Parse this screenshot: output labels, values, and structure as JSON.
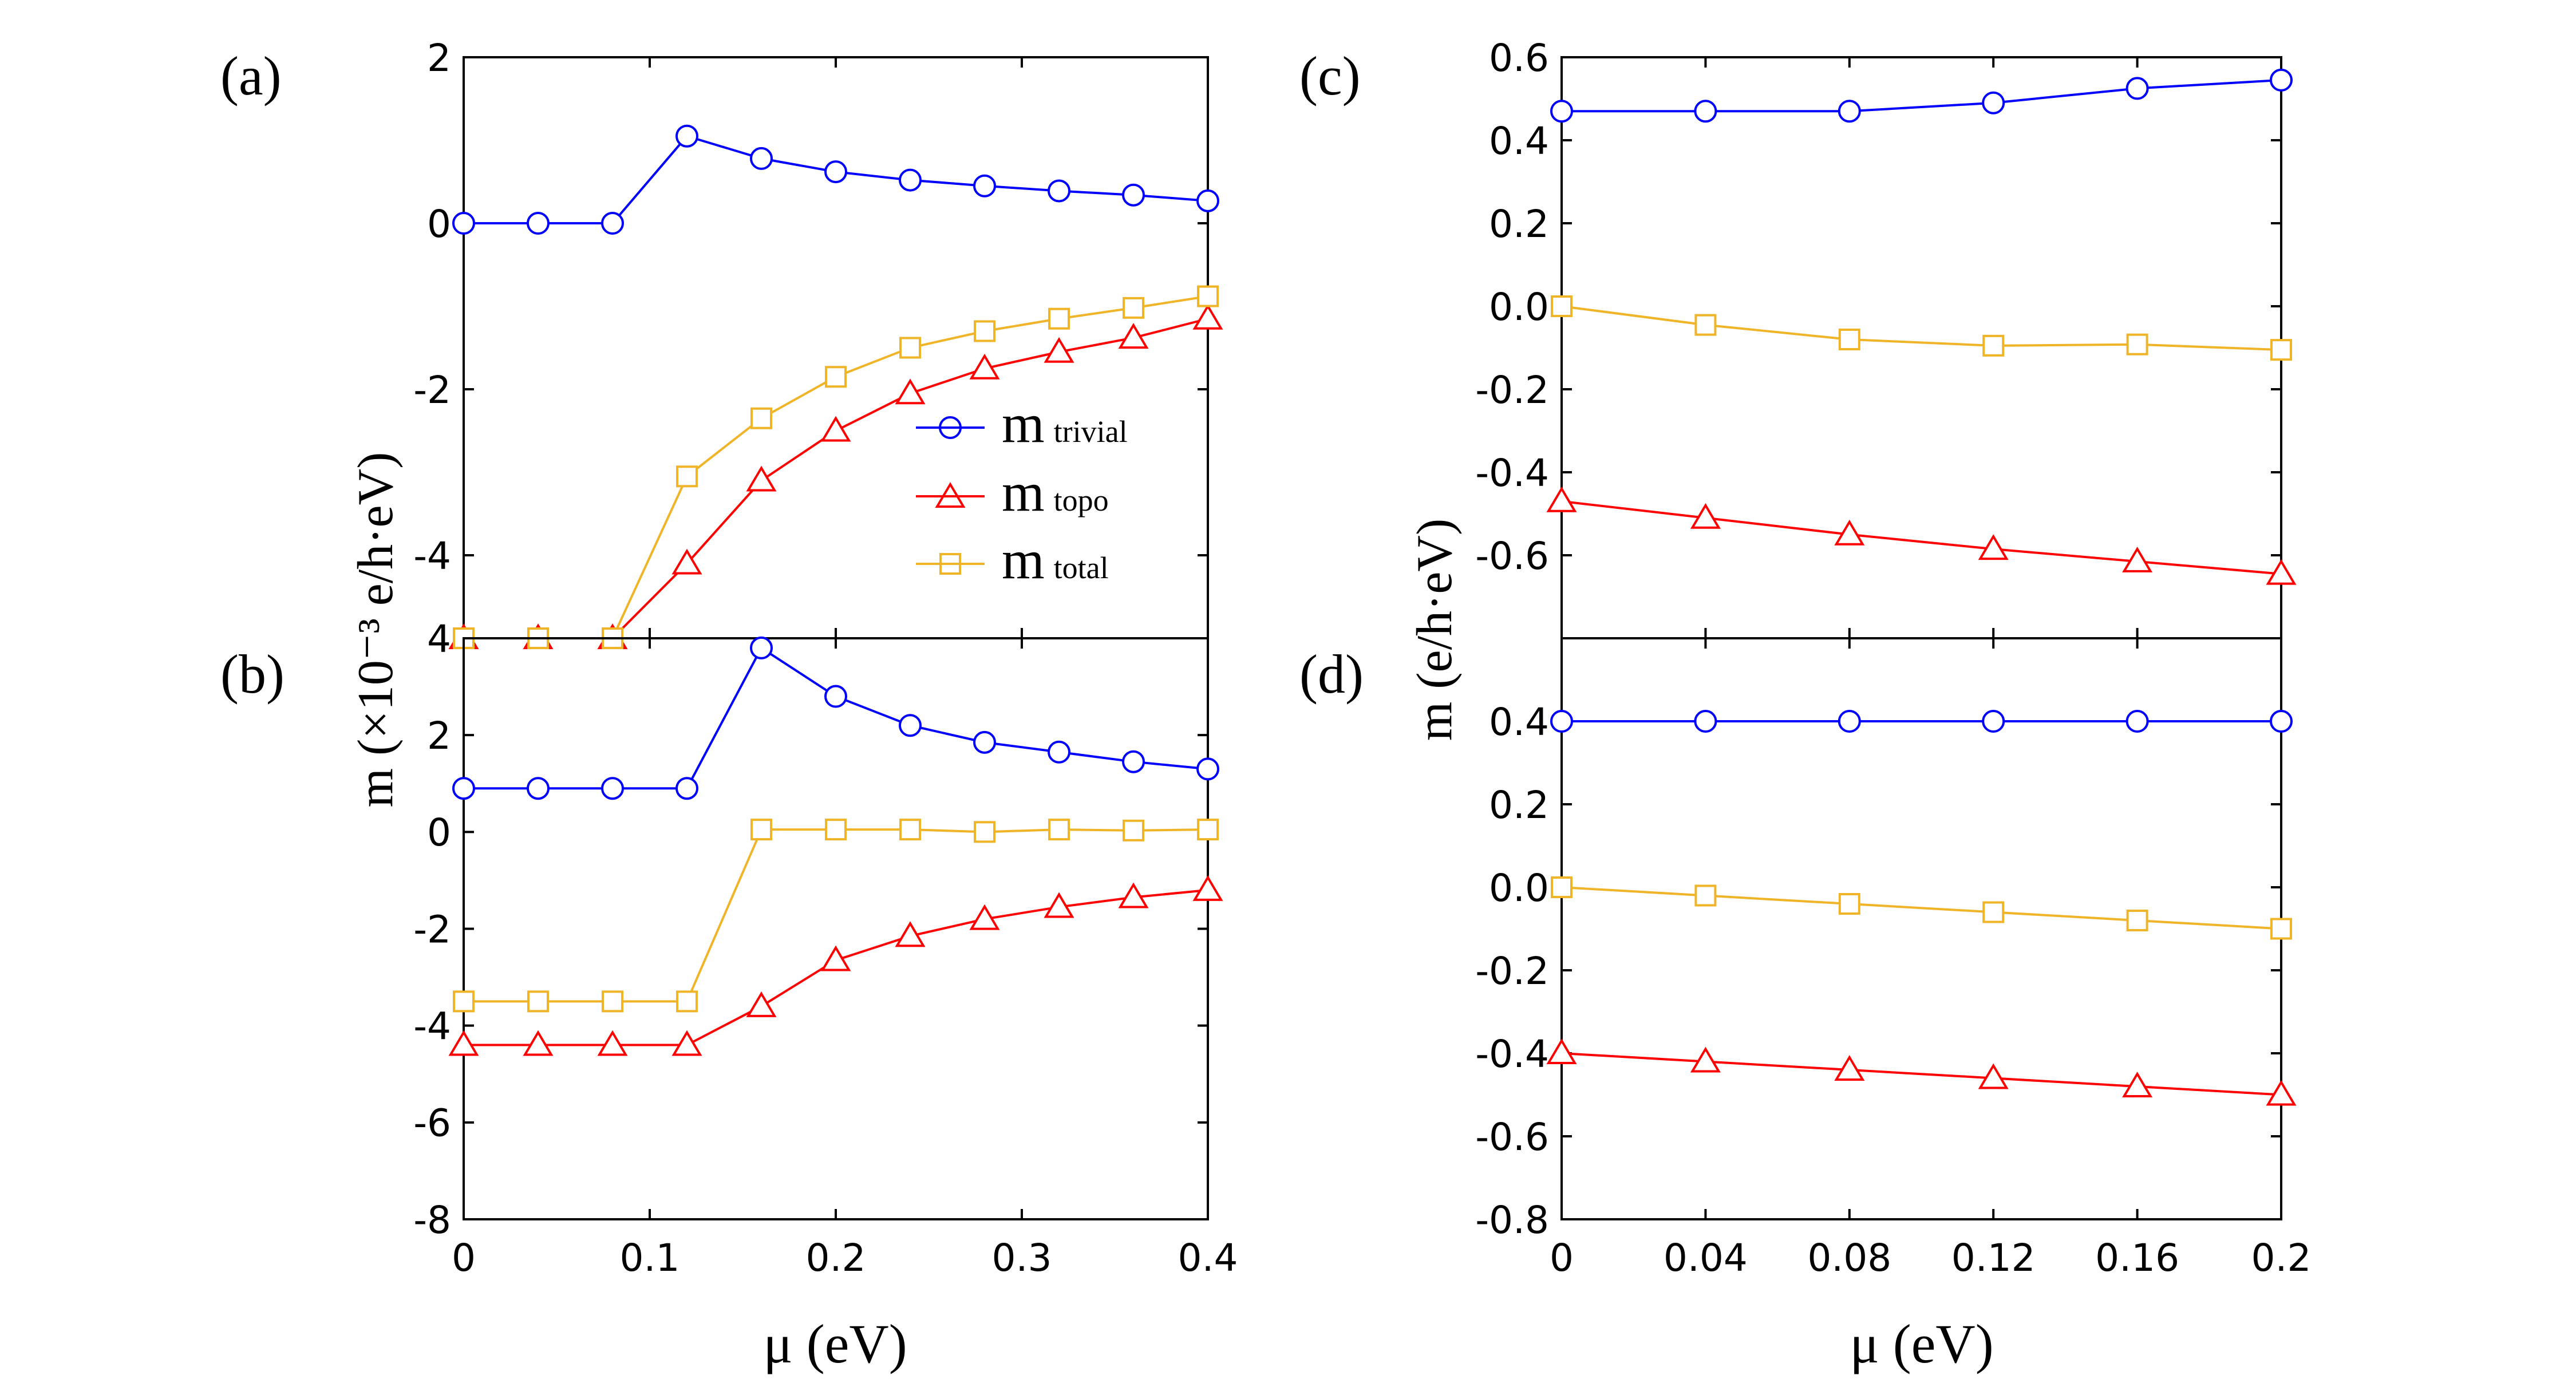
{
  "figure": {
    "xlabel_left": "μ (eV)",
    "xlabel_right": "μ (eV)",
    "ylabel_left": "m (×10⁻³ e/h·eV)",
    "ylabel_right": "m (e/h·eV)",
    "legend": [
      {
        "symbol": "m",
        "sub": "trivial",
        "marker": "circle",
        "color": "#0000ff"
      },
      {
        "symbol": "m",
        "sub": "topo",
        "marker": "triangle",
        "color": "#ff0000"
      },
      {
        "symbol": "m",
        "sub": "total",
        "marker": "square",
        "color": "#f0b428"
      }
    ]
  },
  "chart_data": [
    {
      "panel": "(a)",
      "type": "line",
      "x": [
        0,
        0.04,
        0.08,
        0.12,
        0.16,
        0.2,
        0.24,
        0.28,
        0.32,
        0.36,
        0.4
      ],
      "xlim": [
        0,
        0.4
      ],
      "ylim": [
        -5,
        2
      ],
      "yticks": [
        2,
        0,
        -2,
        -4
      ],
      "ytick_labels": [
        "2",
        "0",
        "-2",
        "-4"
      ],
      "series": [
        {
          "name": "m trivial",
          "marker": "circle",
          "color": "#0000ff",
          "values": [
            0,
            0,
            0,
            1.05,
            0.78,
            0.62,
            0.52,
            0.45,
            0.39,
            0.34,
            0.27
          ]
        },
        {
          "name": "m topo",
          "marker": "triangle",
          "color": "#ff0000",
          "values": [
            -5,
            -5,
            -5,
            -4.1,
            -3.1,
            -2.5,
            -2.05,
            -1.75,
            -1.55,
            -1.38,
            -1.15
          ]
        },
        {
          "name": "m total",
          "marker": "square",
          "color": "#f0b428",
          "values": [
            -5,
            -5,
            -5,
            -3.05,
            -2.35,
            -1.85,
            -1.5,
            -1.3,
            -1.15,
            -1.02,
            -0.88
          ]
        }
      ]
    },
    {
      "panel": "(b)",
      "type": "line",
      "x": [
        0,
        0.04,
        0.08,
        0.12,
        0.16,
        0.2,
        0.24,
        0.28,
        0.32,
        0.36,
        0.4
      ],
      "xlim": [
        0,
        0.4
      ],
      "ylim": [
        -8,
        4
      ],
      "xticks": [
        0,
        0.1,
        0.2,
        0.3,
        0.4
      ],
      "xtick_labels": [
        "0",
        "0.1",
        "0.2",
        "0.3",
        "0.4"
      ],
      "yticks": [
        4,
        2,
        0,
        -2,
        -4,
        -6,
        -8
      ],
      "ytick_labels": [
        "4",
        "2",
        "0",
        "-2",
        "-4",
        "-6",
        "-8"
      ],
      "series": [
        {
          "name": "m trivial",
          "marker": "circle",
          "color": "#0000ff",
          "values": [
            0.9,
            0.9,
            0.9,
            0.9,
            3.8,
            2.8,
            2.2,
            1.85,
            1.65,
            1.45,
            1.3
          ]
        },
        {
          "name": "m topo",
          "marker": "triangle",
          "color": "#ff0000",
          "values": [
            -4.4,
            -4.4,
            -4.4,
            -4.4,
            -3.6,
            -2.65,
            -2.15,
            -1.8,
            -1.55,
            -1.35,
            -1.2
          ]
        },
        {
          "name": "m total",
          "marker": "square",
          "color": "#f0b428",
          "values": [
            -3.5,
            -3.5,
            -3.5,
            -3.5,
            0.05,
            0.05,
            0.05,
            0.0,
            0.05,
            0.03,
            0.05
          ]
        }
      ]
    },
    {
      "panel": "(c)",
      "type": "line",
      "x": [
        0,
        0.04,
        0.08,
        0.12,
        0.16,
        0.2
      ],
      "xlim": [
        0,
        0.2
      ],
      "ylim": [
        -0.8,
        0.6
      ],
      "yticks": [
        0.6,
        0.4,
        0.2,
        0.0,
        -0.2,
        -0.4,
        -0.6
      ],
      "ytick_labels": [
        "0.6",
        "0.4",
        "0.2",
        "0.0",
        "-0.2",
        "-0.4",
        "-0.6"
      ],
      "series": [
        {
          "name": "m trivial",
          "marker": "circle",
          "color": "#0000ff",
          "values": [
            0.47,
            0.47,
            0.47,
            0.49,
            0.525,
            0.545
          ]
        },
        {
          "name": "m topo",
          "marker": "triangle",
          "color": "#ff0000",
          "values": [
            -0.47,
            -0.51,
            -0.55,
            -0.585,
            -0.615,
            -0.645
          ]
        },
        {
          "name": "m total",
          "marker": "square",
          "color": "#f0b428",
          "values": [
            0.0,
            -0.045,
            -0.08,
            -0.095,
            -0.092,
            -0.105
          ]
        }
      ]
    },
    {
      "panel": "(d)",
      "type": "line",
      "x": [
        0,
        0.04,
        0.08,
        0.12,
        0.16,
        0.2
      ],
      "xlim": [
        0,
        0.2
      ],
      "ylim": [
        -0.8,
        0.6
      ],
      "xticks": [
        0,
        0.04,
        0.08,
        0.12,
        0.16,
        0.2
      ],
      "xtick_labels": [
        "0",
        "0.04",
        "0.08",
        "0.12",
        "0.16",
        "0.2"
      ],
      "yticks": [
        0.4,
        0.2,
        0.0,
        -0.2,
        -0.4,
        -0.6,
        -0.8
      ],
      "ytick_labels": [
        "0.4",
        "0.2",
        "0.0",
        "-0.2",
        "-0.4",
        "-0.6",
        "-0.8"
      ],
      "series": [
        {
          "name": "m trivial",
          "marker": "circle",
          "color": "#0000ff",
          "values": [
            0.4,
            0.4,
            0.4,
            0.4,
            0.4,
            0.4
          ]
        },
        {
          "name": "m topo",
          "marker": "triangle",
          "color": "#ff0000",
          "values": [
            -0.4,
            -0.42,
            -0.44,
            -0.46,
            -0.48,
            -0.5
          ]
        },
        {
          "name": "m total",
          "marker": "square",
          "color": "#f0b428",
          "values": [
            0.0,
            -0.02,
            -0.04,
            -0.06,
            -0.08,
            -0.1
          ]
        }
      ]
    }
  ]
}
